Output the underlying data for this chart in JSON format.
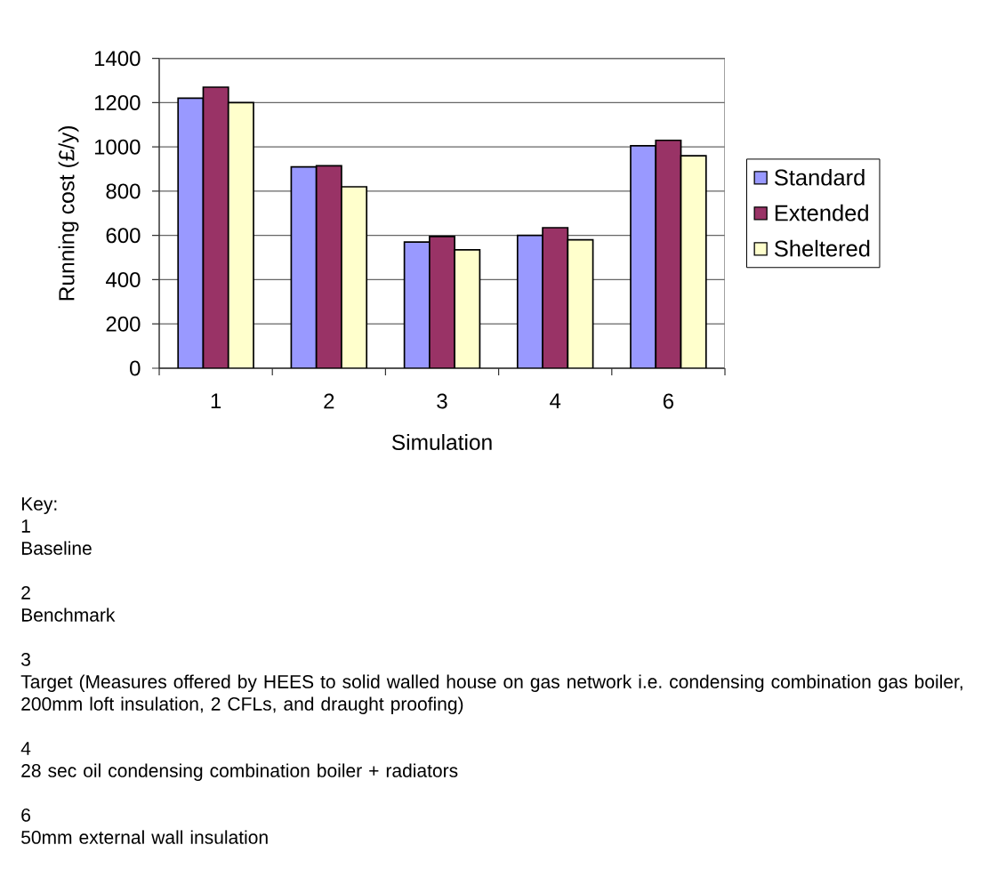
{
  "chart_data": {
    "type": "bar",
    "categories": [
      "1",
      "2",
      "3",
      "4",
      "6"
    ],
    "series": [
      {
        "name": "Standard",
        "color": "#9999ff",
        "values": [
          1220,
          910,
          570,
          600,
          1005
        ]
      },
      {
        "name": "Extended",
        "color": "#993366",
        "values": [
          1270,
          915,
          595,
          635,
          1030
        ]
      },
      {
        "name": "Sheltered",
        "color": "#ffffcc",
        "values": [
          1200,
          820,
          535,
          580,
          960
        ]
      }
    ],
    "xlabel": "Simulation",
    "ylabel": "Running cost (£/y)",
    "ylim": [
      0,
      1400
    ],
    "yticks": [
      0,
      200,
      400,
      600,
      800,
      1000,
      1200,
      1400
    ],
    "grid": "y",
    "legend": "right",
    "annotations": [
      "Key:",
      "1",
      "Baseline",
      "2",
      "Benchmark",
      "3",
      "Target (Measures offered by HEES to solid walled house on gas network i.e. condensing combination gas boiler, 200mm loft insulation, 2 CFLs, and draught proofing)",
      "4",
      "28 sec oil condensing combination boiler + radiators",
      "6",
      "50mm external wall insulation"
    ]
  }
}
